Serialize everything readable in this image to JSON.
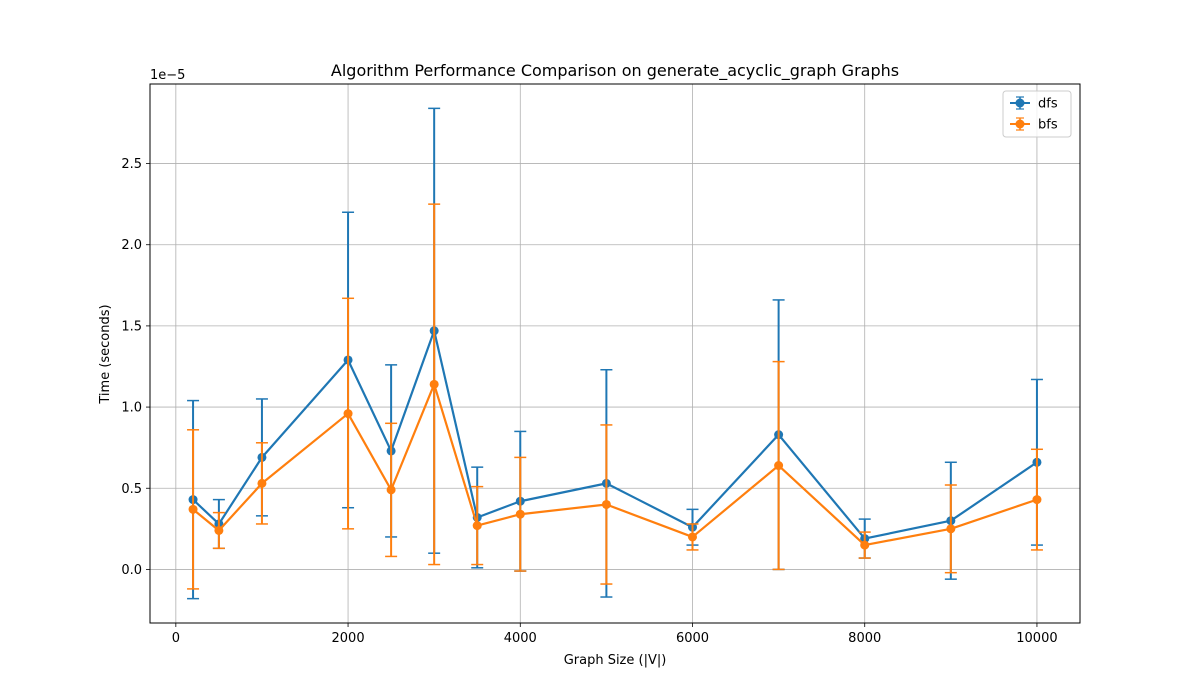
{
  "chart_data": {
    "type": "line",
    "title": "Algorithm Performance Comparison on generate_acyclic_graph Graphs",
    "xlabel": "Graph Size (|V|)",
    "ylabel": "Time (seconds)",
    "y_offset_label": "1e−5",
    "y_scale_factor": 1e-05,
    "xlim": [
      -300,
      10500
    ],
    "ylim": [
      -0.33,
      2.99
    ],
    "x_ticks": [
      0,
      2000,
      4000,
      6000,
      8000,
      10000
    ],
    "x_tick_labels": [
      "0",
      "2000",
      "4000",
      "6000",
      "8000",
      "10000"
    ],
    "y_ticks": [
      0.0,
      0.5,
      1.0,
      1.5,
      2.0,
      2.5
    ],
    "y_tick_labels": [
      "0.0",
      "0.5",
      "1.0",
      "1.5",
      "2.0",
      "2.5"
    ],
    "grid": true,
    "legend_position": "top-right",
    "x": [
      200,
      500,
      1000,
      2000,
      2500,
      3000,
      3500,
      4000,
      5000,
      6000,
      7000,
      8000,
      9000,
      10000
    ],
    "series": [
      {
        "name": "dfs",
        "color": "#1f77b4",
        "values": [
          0.43,
          0.28,
          0.69,
          1.29,
          0.73,
          1.47,
          0.32,
          0.42,
          0.53,
          0.26,
          0.83,
          0.19,
          0.3,
          0.66
        ],
        "errors": [
          0.61,
          0.15,
          0.36,
          0.91,
          0.53,
          1.37,
          0.31,
          0.43,
          0.7,
          0.11,
          0.83,
          0.12,
          0.36,
          0.51
        ]
      },
      {
        "name": "bfs",
        "color": "#ff7f0e",
        "values": [
          0.37,
          0.24,
          0.53,
          0.96,
          0.49,
          1.14,
          0.27,
          0.34,
          0.4,
          0.2,
          0.64,
          0.15,
          0.25,
          0.43
        ],
        "errors": [
          0.49,
          0.11,
          0.25,
          0.71,
          0.41,
          1.11,
          0.24,
          0.35,
          0.49,
          0.08,
          0.64,
          0.08,
          0.27,
          0.31
        ]
      }
    ]
  }
}
